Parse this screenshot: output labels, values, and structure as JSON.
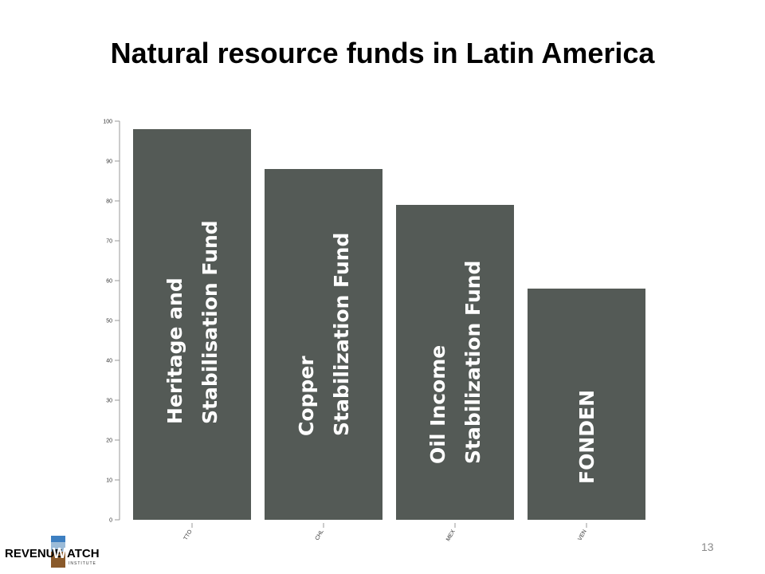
{
  "slide": {
    "title": "Natural resource funds in Latin America",
    "page_number": "13"
  },
  "logo": {
    "part1": "REVENUE",
    "mark": "W",
    "part2": "ATCH",
    "sub": "INSTITUTE"
  },
  "chart_data": {
    "type": "bar",
    "categories": [
      "TTO",
      "CHL",
      "MEX",
      "VEN"
    ],
    "values": [
      98,
      88,
      79,
      58
    ],
    "bar_labels": [
      [
        "Heritage and",
        "Stabilisation Fund"
      ],
      [
        "Copper",
        "Stabilization Fund"
      ],
      [
        "Oil Income",
        "Stabilization Fund"
      ],
      [
        "FONDEN"
      ]
    ],
    "y_ticks": [
      0,
      10,
      20,
      30,
      40,
      50,
      60,
      70,
      80,
      90,
      100
    ],
    "ylim": [
      0,
      100
    ],
    "bar_color": "#545a56",
    "grid": false
  }
}
